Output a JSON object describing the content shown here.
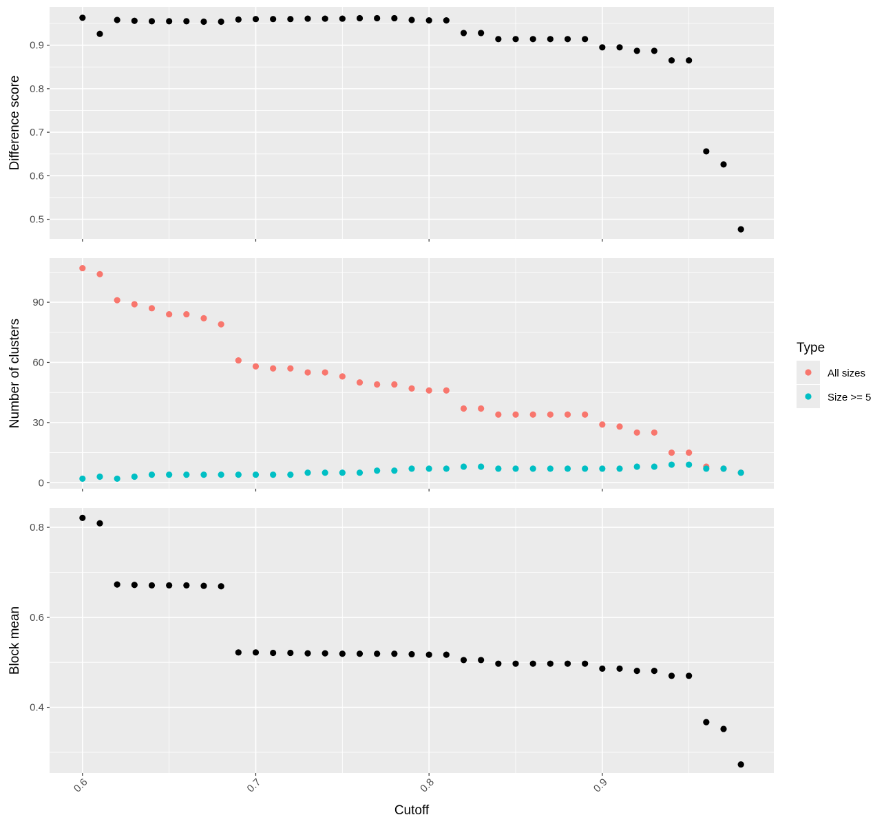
{
  "chart_data": {
    "type": "scatter",
    "layout": "faceted-vertical",
    "xlabel": "Cutoff",
    "x_ticks": [
      0.6,
      0.7,
      0.8,
      0.9
    ],
    "x_tick_labels": [
      "0.6",
      "0.7",
      "0.8",
      "0.9"
    ],
    "xlim": [
      0.581,
      0.999
    ],
    "x": [
      0.6,
      0.61,
      0.62,
      0.63,
      0.64,
      0.65,
      0.66,
      0.67,
      0.68,
      0.69,
      0.7,
      0.71,
      0.72,
      0.73,
      0.74,
      0.75,
      0.76,
      0.77,
      0.78,
      0.79,
      0.8,
      0.81,
      0.82,
      0.83,
      0.84,
      0.85,
      0.86,
      0.87,
      0.88,
      0.89,
      0.9,
      0.91,
      0.92,
      0.93,
      0.94,
      0.95,
      0.96,
      0.97,
      0.98
    ],
    "legend": {
      "title": "Type",
      "position": "right",
      "entries": [
        {
          "label": "All sizes",
          "color": "#F8766D"
        },
        {
          "label": "Size >= 5",
          "color": "#00BFC4"
        }
      ]
    },
    "panels": [
      {
        "ylabel": "Difference score",
        "ylim": [
          0.455,
          0.988
        ],
        "y_ticks": [
          0.5,
          0.6,
          0.7,
          0.8,
          0.9
        ],
        "y_tick_labels": [
          "0.5",
          "0.6",
          "0.7",
          "0.8",
          "0.9"
        ],
        "series": [
          {
            "color": "#000000",
            "values": [
              0.963,
              0.926,
              0.958,
              0.956,
              0.955,
              0.955,
              0.955,
              0.954,
              0.954,
              0.959,
              0.96,
              0.96,
              0.96,
              0.961,
              0.961,
              0.961,
              0.962,
              0.962,
              0.962,
              0.958,
              0.957,
              0.957,
              0.928,
              0.928,
              0.914,
              0.914,
              0.914,
              0.914,
              0.914,
              0.914,
              0.895,
              0.895,
              0.887,
              0.887,
              0.865,
              0.865,
              0.656,
              0.626,
              0.477
            ]
          }
        ]
      },
      {
        "ylabel": "Number of clusters",
        "ylim": [
          -3,
          112
        ],
        "y_ticks": [
          0,
          30,
          60,
          90
        ],
        "y_tick_labels": [
          "0",
          "30",
          "60",
          "90"
        ],
        "series": [
          {
            "name": "All sizes",
            "color": "#F8766D",
            "values": [
              107,
              104,
              91,
              89,
              87,
              84,
              84,
              82,
              79,
              61,
              58,
              57,
              57,
              55,
              55,
              53,
              50,
              49,
              49,
              47,
              46,
              46,
              37,
              37,
              34,
              34,
              34,
              34,
              34,
              34,
              29,
              28,
              25,
              25,
              15,
              15,
              8,
              7,
              5
            ]
          },
          {
            "name": "Size >= 5",
            "color": "#00BFC4",
            "values": [
              2,
              3,
              2,
              3,
              4,
              4,
              4,
              4,
              4,
              4,
              4,
              4,
              4,
              5,
              5,
              5,
              5,
              6,
              6,
              7,
              7,
              7,
              8,
              8,
              7,
              7,
              7,
              7,
              7,
              7,
              7,
              7,
              8,
              8,
              9,
              9,
              7,
              7,
              5
            ]
          }
        ]
      },
      {
        "ylabel": "Block mean",
        "ylim": [
          0.254,
          0.843
        ],
        "y_ticks": [
          0.4,
          0.6,
          0.8
        ],
        "y_tick_labels": [
          "0.4",
          "0.6",
          "0.8"
        ],
        "series": [
          {
            "color": "#000000",
            "values": [
              0.821,
              0.809,
              0.673,
              0.672,
              0.671,
              0.671,
              0.671,
              0.67,
              0.669,
              0.522,
              0.522,
              0.521,
              0.521,
              0.52,
              0.52,
              0.519,
              0.519,
              0.519,
              0.519,
              0.518,
              0.517,
              0.517,
              0.505,
              0.505,
              0.497,
              0.497,
              0.497,
              0.497,
              0.497,
              0.497,
              0.486,
              0.486,
              0.481,
              0.481,
              0.47,
              0.47,
              0.367,
              0.352,
              0.273
            ]
          }
        ]
      }
    ]
  }
}
